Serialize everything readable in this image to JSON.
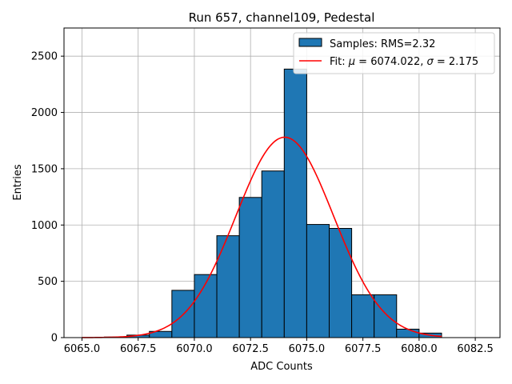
{
  "chart_data": {
    "type": "bar",
    "title": "Run 657, channel109, Pedestal",
    "xlabel": "ADC Counts",
    "ylabel": "Entries",
    "xlim": [
      6064.2,
      6083.6
    ],
    "ylim": [
      0,
      2750
    ],
    "xticks": [
      6065.0,
      6067.5,
      6070.0,
      6072.5,
      6075.0,
      6077.5,
      6080.0,
      6082.5
    ],
    "xtick_labels": [
      "6065.0",
      "6067.5",
      "6070.0",
      "6072.5",
      "6075.0",
      "6077.5",
      "6080.0",
      "6082.5"
    ],
    "yticks": [
      0,
      500,
      1000,
      1500,
      2000,
      2500
    ],
    "ytick_labels": [
      "0",
      "500",
      "1000",
      "1500",
      "2000",
      "2500"
    ],
    "grid": true,
    "histogram": {
      "name": "Samples: RMS=2.32",
      "color": "#1f77b4",
      "edgecolor": "#000000",
      "bins": [
        {
          "start": 6066,
          "end": 6067,
          "value": 5
        },
        {
          "start": 6067,
          "end": 6068,
          "value": 22
        },
        {
          "start": 6068,
          "end": 6069,
          "value": 55
        },
        {
          "start": 6069,
          "end": 6070,
          "value": 420
        },
        {
          "start": 6070,
          "end": 6071,
          "value": 560
        },
        {
          "start": 6071,
          "end": 6072,
          "value": 905
        },
        {
          "start": 6072,
          "end": 6073,
          "value": 1245
        },
        {
          "start": 6073,
          "end": 6074,
          "value": 1480
        },
        {
          "start": 6074,
          "end": 6075,
          "value": 2385
        },
        {
          "start": 6075,
          "end": 6076,
          "value": 1005
        },
        {
          "start": 6076,
          "end": 6077,
          "value": 970
        },
        {
          "start": 6077,
          "end": 6078,
          "value": 380
        },
        {
          "start": 6078,
          "end": 6079,
          "value": 380
        },
        {
          "start": 6079,
          "end": 6080,
          "value": 75
        },
        {
          "start": 6080,
          "end": 6081,
          "value": 40
        }
      ]
    },
    "fit": {
      "name_prefix": "Fit: ",
      "mu_symbol": "μ",
      "mu_text": " = 6074.022, ",
      "sigma_symbol": "σ",
      "sigma_text": " = 2.175",
      "mu": 6074.022,
      "sigma": 2.175,
      "amplitude": 1780,
      "x_range": [
        6065.0,
        6081.0
      ],
      "color": "#ff0000"
    },
    "legend_position": "top-right"
  }
}
